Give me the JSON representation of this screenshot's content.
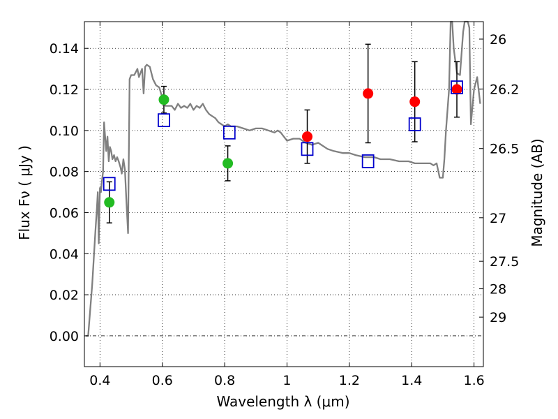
{
  "chart_data": {
    "type": "scatter",
    "xlabel": "Wavelength  λ (μm)",
    "ylabel": "Flux  Fν  ( μJy )",
    "y2label": "Magnitude (AB)",
    "xlim": [
      0.35,
      1.63
    ],
    "ylim": [
      -0.015,
      0.153
    ],
    "grid": true,
    "x_ticks": [
      0.4,
      0.6,
      0.8,
      1.0,
      1.2,
      1.4,
      1.6
    ],
    "x_tick_labels": [
      "0.4",
      "0.6",
      "0.8",
      "1",
      "1.2",
      "1.4",
      "1.6"
    ],
    "y_ticks": [
      0.0,
      0.02,
      0.04,
      0.06,
      0.08,
      0.1,
      0.12,
      0.14
    ],
    "y_tick_labels": [
      "0.00",
      "0.02",
      "0.04",
      "0.06",
      "0.08",
      "0.10",
      "0.12",
      "0.14"
    ],
    "y2_ticks": [
      {
        "mag": "26",
        "flux": 0.1445
      },
      {
        "mag": "26.2",
        "flux": 0.1202
      },
      {
        "mag": "26.5",
        "flux": 0.0912
      },
      {
        "mag": "27",
        "flux": 0.0575
      },
      {
        "mag": "27.5",
        "flux": 0.0363
      },
      {
        "mag": "28",
        "flux": 0.0229
      },
      {
        "mag": "29",
        "flux": 0.0091
      }
    ],
    "series": [
      {
        "kind": "line",
        "color": "#808080",
        "points": [
          [
            0.355,
            0.0
          ],
          [
            0.362,
            0.0
          ],
          [
            0.375,
            0.025
          ],
          [
            0.385,
            0.05
          ],
          [
            0.39,
            0.062
          ],
          [
            0.393,
            0.07
          ],
          [
            0.396,
            0.045
          ],
          [
            0.4,
            0.072
          ],
          [
            0.403,
            0.07
          ],
          [
            0.406,
            0.075
          ],
          [
            0.41,
            0.08
          ],
          [
            0.413,
            0.104
          ],
          [
            0.416,
            0.098
          ],
          [
            0.42,
            0.09
          ],
          [
            0.424,
            0.097
          ],
          [
            0.428,
            0.085
          ],
          [
            0.432,
            0.092
          ],
          [
            0.436,
            0.09
          ],
          [
            0.44,
            0.086
          ],
          [
            0.445,
            0.088
          ],
          [
            0.45,
            0.085
          ],
          [
            0.455,
            0.087
          ],
          [
            0.46,
            0.085
          ],
          [
            0.466,
            0.082
          ],
          [
            0.47,
            0.079
          ],
          [
            0.475,
            0.086
          ],
          [
            0.48,
            0.081
          ],
          [
            0.485,
            0.065
          ],
          [
            0.49,
            0.05
          ],
          [
            0.495,
            0.125
          ],
          [
            0.5,
            0.127
          ],
          [
            0.51,
            0.127
          ],
          [
            0.52,
            0.13
          ],
          [
            0.525,
            0.126
          ],
          [
            0.53,
            0.128
          ],
          [
            0.535,
            0.13
          ],
          [
            0.54,
            0.118
          ],
          [
            0.545,
            0.131
          ],
          [
            0.55,
            0.132
          ],
          [
            0.56,
            0.131
          ],
          [
            0.57,
            0.125
          ],
          [
            0.58,
            0.122
          ],
          [
            0.59,
            0.121
          ],
          [
            0.6,
            0.116
          ],
          [
            0.61,
            0.112
          ],
          [
            0.62,
            0.112
          ],
          [
            0.63,
            0.112
          ],
          [
            0.64,
            0.11
          ],
          [
            0.65,
            0.113
          ],
          [
            0.66,
            0.111
          ],
          [
            0.67,
            0.112
          ],
          [
            0.68,
            0.111
          ],
          [
            0.69,
            0.113
          ],
          [
            0.7,
            0.11
          ],
          [
            0.71,
            0.112
          ],
          [
            0.72,
            0.111
          ],
          [
            0.73,
            0.113
          ],
          [
            0.74,
            0.11
          ],
          [
            0.75,
            0.108
          ],
          [
            0.76,
            0.107
          ],
          [
            0.77,
            0.106
          ],
          [
            0.78,
            0.104
          ],
          [
            0.79,
            0.103
          ],
          [
            0.8,
            0.102
          ],
          [
            0.81,
            0.103
          ],
          [
            0.82,
            0.102
          ],
          [
            0.84,
            0.102
          ],
          [
            0.86,
            0.101
          ],
          [
            0.88,
            0.1
          ],
          [
            0.9,
            0.101
          ],
          [
            0.92,
            0.101
          ],
          [
            0.94,
            0.1
          ],
          [
            0.96,
            0.099
          ],
          [
            0.97,
            0.1
          ],
          [
            0.98,
            0.099
          ],
          [
            0.99,
            0.097
          ],
          [
            1.0,
            0.095
          ],
          [
            1.02,
            0.096
          ],
          [
            1.04,
            0.096
          ],
          [
            1.06,
            0.094
          ],
          [
            1.08,
            0.093
          ],
          [
            1.1,
            0.094
          ],
          [
            1.13,
            0.091
          ],
          [
            1.15,
            0.09
          ],
          [
            1.18,
            0.089
          ],
          [
            1.2,
            0.089
          ],
          [
            1.22,
            0.088
          ],
          [
            1.25,
            0.087
          ],
          [
            1.28,
            0.087
          ],
          [
            1.3,
            0.086
          ],
          [
            1.33,
            0.086
          ],
          [
            1.36,
            0.085
          ],
          [
            1.39,
            0.085
          ],
          [
            1.41,
            0.084
          ],
          [
            1.43,
            0.084
          ],
          [
            1.46,
            0.084
          ],
          [
            1.47,
            0.083
          ],
          [
            1.48,
            0.084
          ],
          [
            1.49,
            0.077
          ],
          [
            1.5,
            0.077
          ],
          [
            1.505,
            0.086
          ],
          [
            1.51,
            0.1
          ],
          [
            1.52,
            0.12
          ],
          [
            1.525,
            0.153
          ],
          [
            1.53,
            0.153
          ],
          [
            1.535,
            0.14
          ],
          [
            1.545,
            0.128
          ],
          [
            1.555,
            0.127
          ],
          [
            1.565,
            0.148
          ],
          [
            1.57,
            0.153
          ],
          [
            1.58,
            0.153
          ],
          [
            1.585,
            0.15
          ],
          [
            1.59,
            0.103
          ],
          [
            1.6,
            0.12
          ],
          [
            1.61,
            0.126
          ],
          [
            1.62,
            0.113
          ]
        ]
      },
      {
        "kind": "scatter",
        "marker": "circle",
        "color": "#22bb22",
        "points": [
          {
            "x": 0.43,
            "y": 0.065,
            "err": 0.01
          },
          {
            "x": 0.605,
            "y": 0.115,
            "err": 0.0065
          },
          {
            "x": 0.81,
            "y": 0.084,
            "err": 0.0085
          }
        ]
      },
      {
        "kind": "scatter",
        "marker": "circle",
        "color": "#ff0000",
        "points": [
          {
            "x": 1.065,
            "y": 0.097,
            "err": 0.013
          },
          {
            "x": 1.26,
            "y": 0.118,
            "err": 0.024
          },
          {
            "x": 1.41,
            "y": 0.114,
            "err": 0.0195
          },
          {
            "x": 1.545,
            "y": 0.12,
            "err": 0.0135
          }
        ]
      },
      {
        "kind": "scatter",
        "marker": "open-square",
        "color": "#0000cc",
        "points": [
          {
            "x": 0.43,
            "y": 0.074
          },
          {
            "x": 0.605,
            "y": 0.105
          },
          {
            "x": 0.815,
            "y": 0.099
          },
          {
            "x": 1.065,
            "y": 0.091
          },
          {
            "x": 1.26,
            "y": 0.085
          },
          {
            "x": 1.41,
            "y": 0.103
          },
          {
            "x": 1.545,
            "y": 0.121
          }
        ]
      }
    ]
  }
}
